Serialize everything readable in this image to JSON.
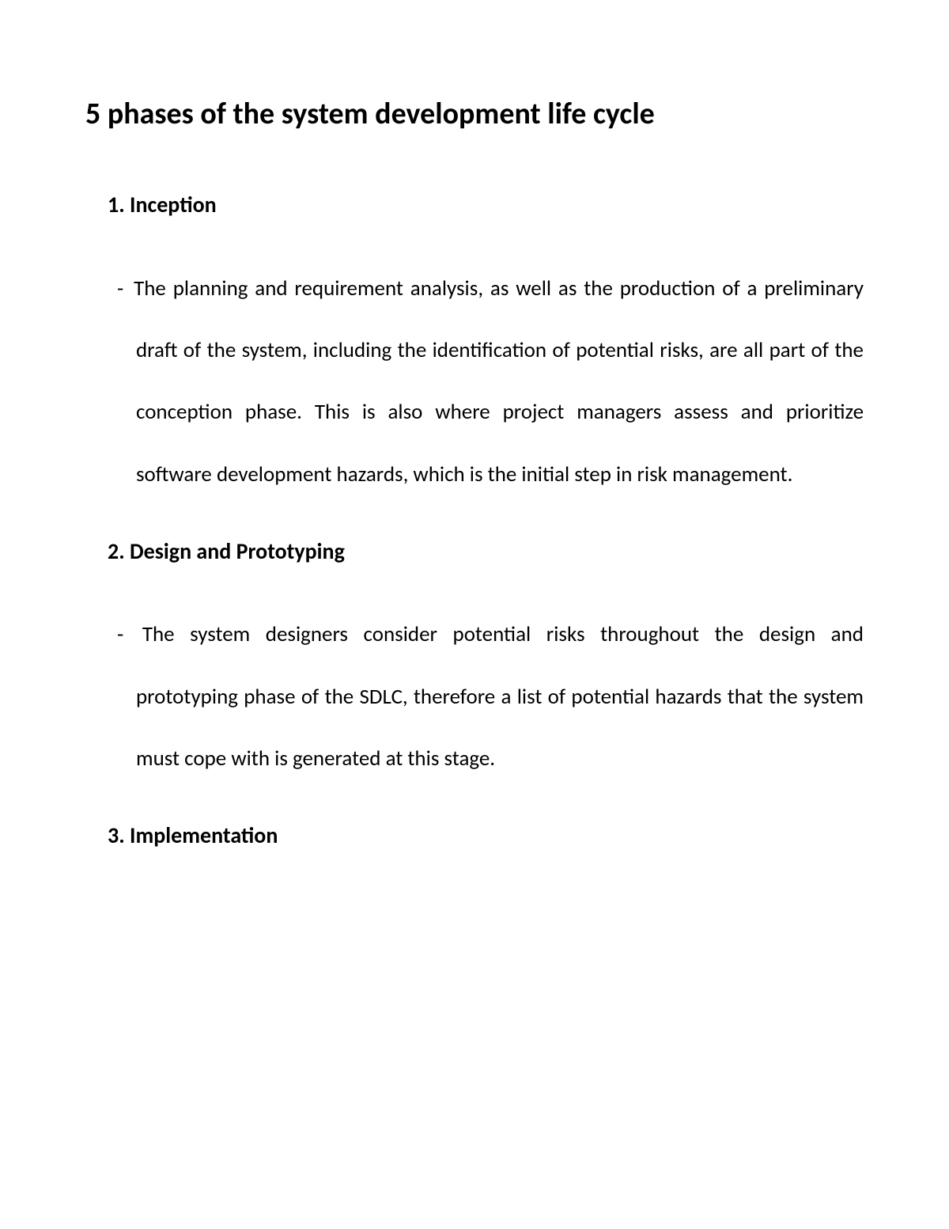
{
  "document": {
    "title": "5 phases of the system development life cycle",
    "sections": [
      {
        "heading": "1.  Inception",
        "body": "The planning and requirement analysis, as well as the production of a preliminary draft of the system, including the identification of potential risks, are all part of the conception phase. This is also where project managers assess and prioritize software development hazards, which is the initial step in risk management."
      },
      {
        "heading": "2. Design and Prototyping",
        "body": "The system designers consider potential risks throughout the design and prototyping phase of the SDLC, therefore a list of potential hazards that the system must cope with is generated at this stage."
      },
      {
        "heading": "3. Implementation",
        "body": ""
      }
    ],
    "style": {
      "background_color": "#ffffff",
      "text_color": "#000000",
      "title_fontsize": 38,
      "heading_fontsize": 28,
      "body_fontsize": 27,
      "line_height": 2.9,
      "font_family": "Calibri"
    }
  }
}
